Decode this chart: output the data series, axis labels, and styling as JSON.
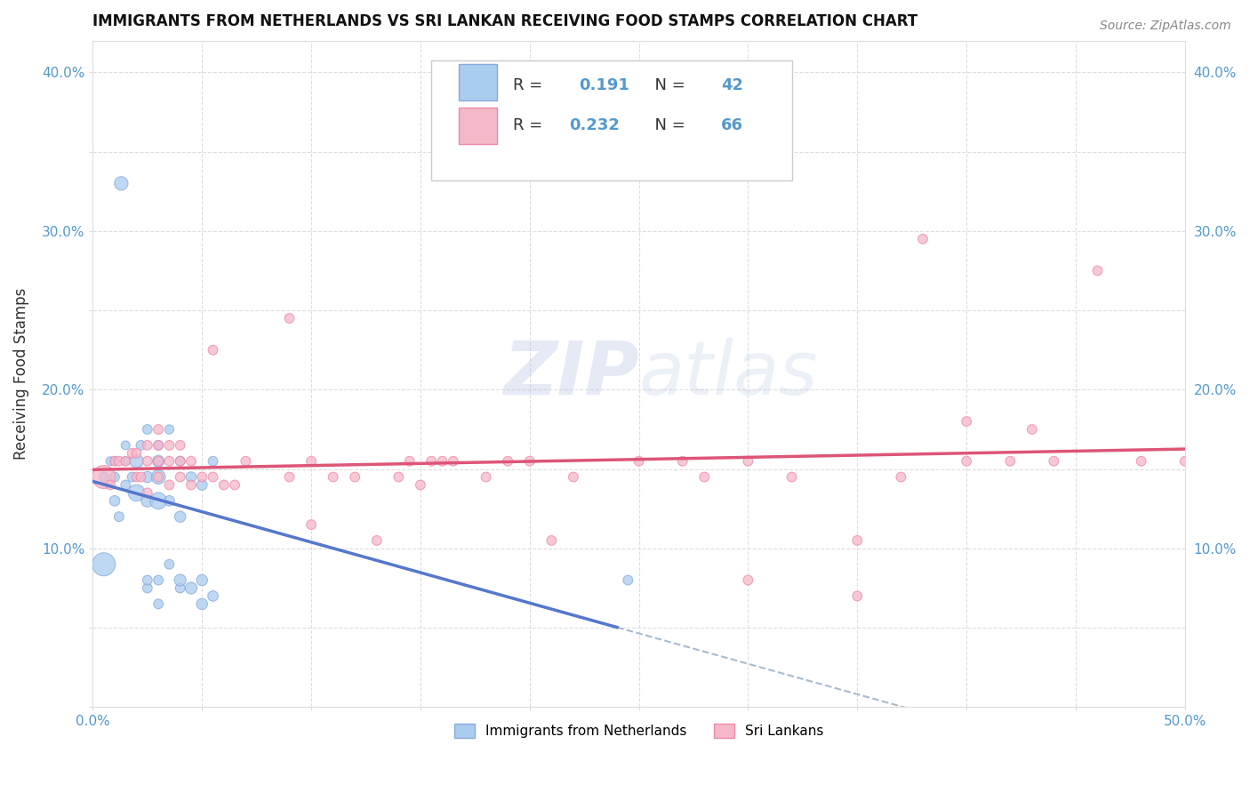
{
  "title": "IMMIGRANTS FROM NETHERLANDS VS SRI LANKAN RECEIVING FOOD STAMPS CORRELATION CHART",
  "source": "Source: ZipAtlas.com",
  "ylabel": "Receiving Food Stamps",
  "xlabel": "",
  "xlim": [
    0.0,
    0.5
  ],
  "ylim": [
    0.0,
    0.42
  ],
  "xtick_labels": [
    "0.0%",
    "",
    "",
    "",
    "",
    "",
    "",
    "",
    "",
    "",
    "50.0%"
  ],
  "ytick_labels_left": [
    "",
    "",
    "10.0%",
    "",
    "20.0%",
    "",
    "30.0%",
    "",
    "40.0%"
  ],
  "ytick_labels_right": [
    "10.0%",
    "20.0%",
    "30.0%",
    "40.0%"
  ],
  "background_color": "#ffffff",
  "grid_color": "#cccccc",
  "legend_R1": "0.191",
  "legend_N1": "42",
  "legend_R2": "0.232",
  "legend_N2": "66",
  "color_netherlands_fill": "#aaccee",
  "color_netherlands_edge": "#88aadd",
  "color_srilanka_fill": "#f5b8c8",
  "color_srilanka_edge": "#ee88aa",
  "color_netherlands_line": "#5577cc",
  "color_srilanka_line": "#dd5577",
  "color_dashed_line": "#aabbcc",
  "legend_label1": "Immigrants from Netherlands",
  "legend_label2": "Sri Lankans",
  "tick_color": "#5599cc",
  "text_color": "#333333"
}
